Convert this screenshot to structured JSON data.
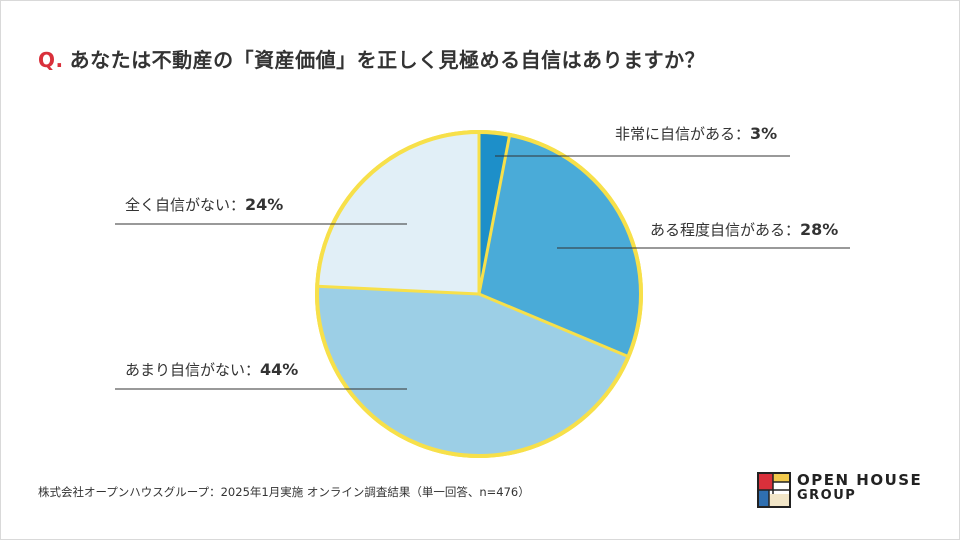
{
  "title": {
    "prefix": "Q.",
    "text": "あなたは不動産の「資産価値」を正しく見極める自信はありますか？"
  },
  "footnote": "株式会社オープンハウスグループ：2025年1月実施 オンライン調査結果（単一回答、n=476）",
  "logo": {
    "line1": "OPEN HOUSE",
    "line2": "GROUP"
  },
  "colors": {
    "title_accent": "#d9303b",
    "pie_outline": "#f7e04a",
    "leader_line": "#333333"
  },
  "chart_data": {
    "type": "pie",
    "title": "",
    "unit": "%",
    "slices": [
      {
        "label": "非常に自信がある",
        "value": 3,
        "value_text": "3%",
        "color": "#1d8fc9"
      },
      {
        "label": "ある程度自信がある",
        "value": 28,
        "value_text": "28%",
        "color": "#4aabd8"
      },
      {
        "label": "あまり自信がない",
        "value": 44,
        "value_text": "44%",
        "color": "#9ccfe6"
      },
      {
        "label": "全く自信がない",
        "value": 24,
        "value_text": "24%",
        "color": "#e1eff7"
      }
    ],
    "start_angle": "12 o'clock",
    "direction": "clockwise"
  }
}
